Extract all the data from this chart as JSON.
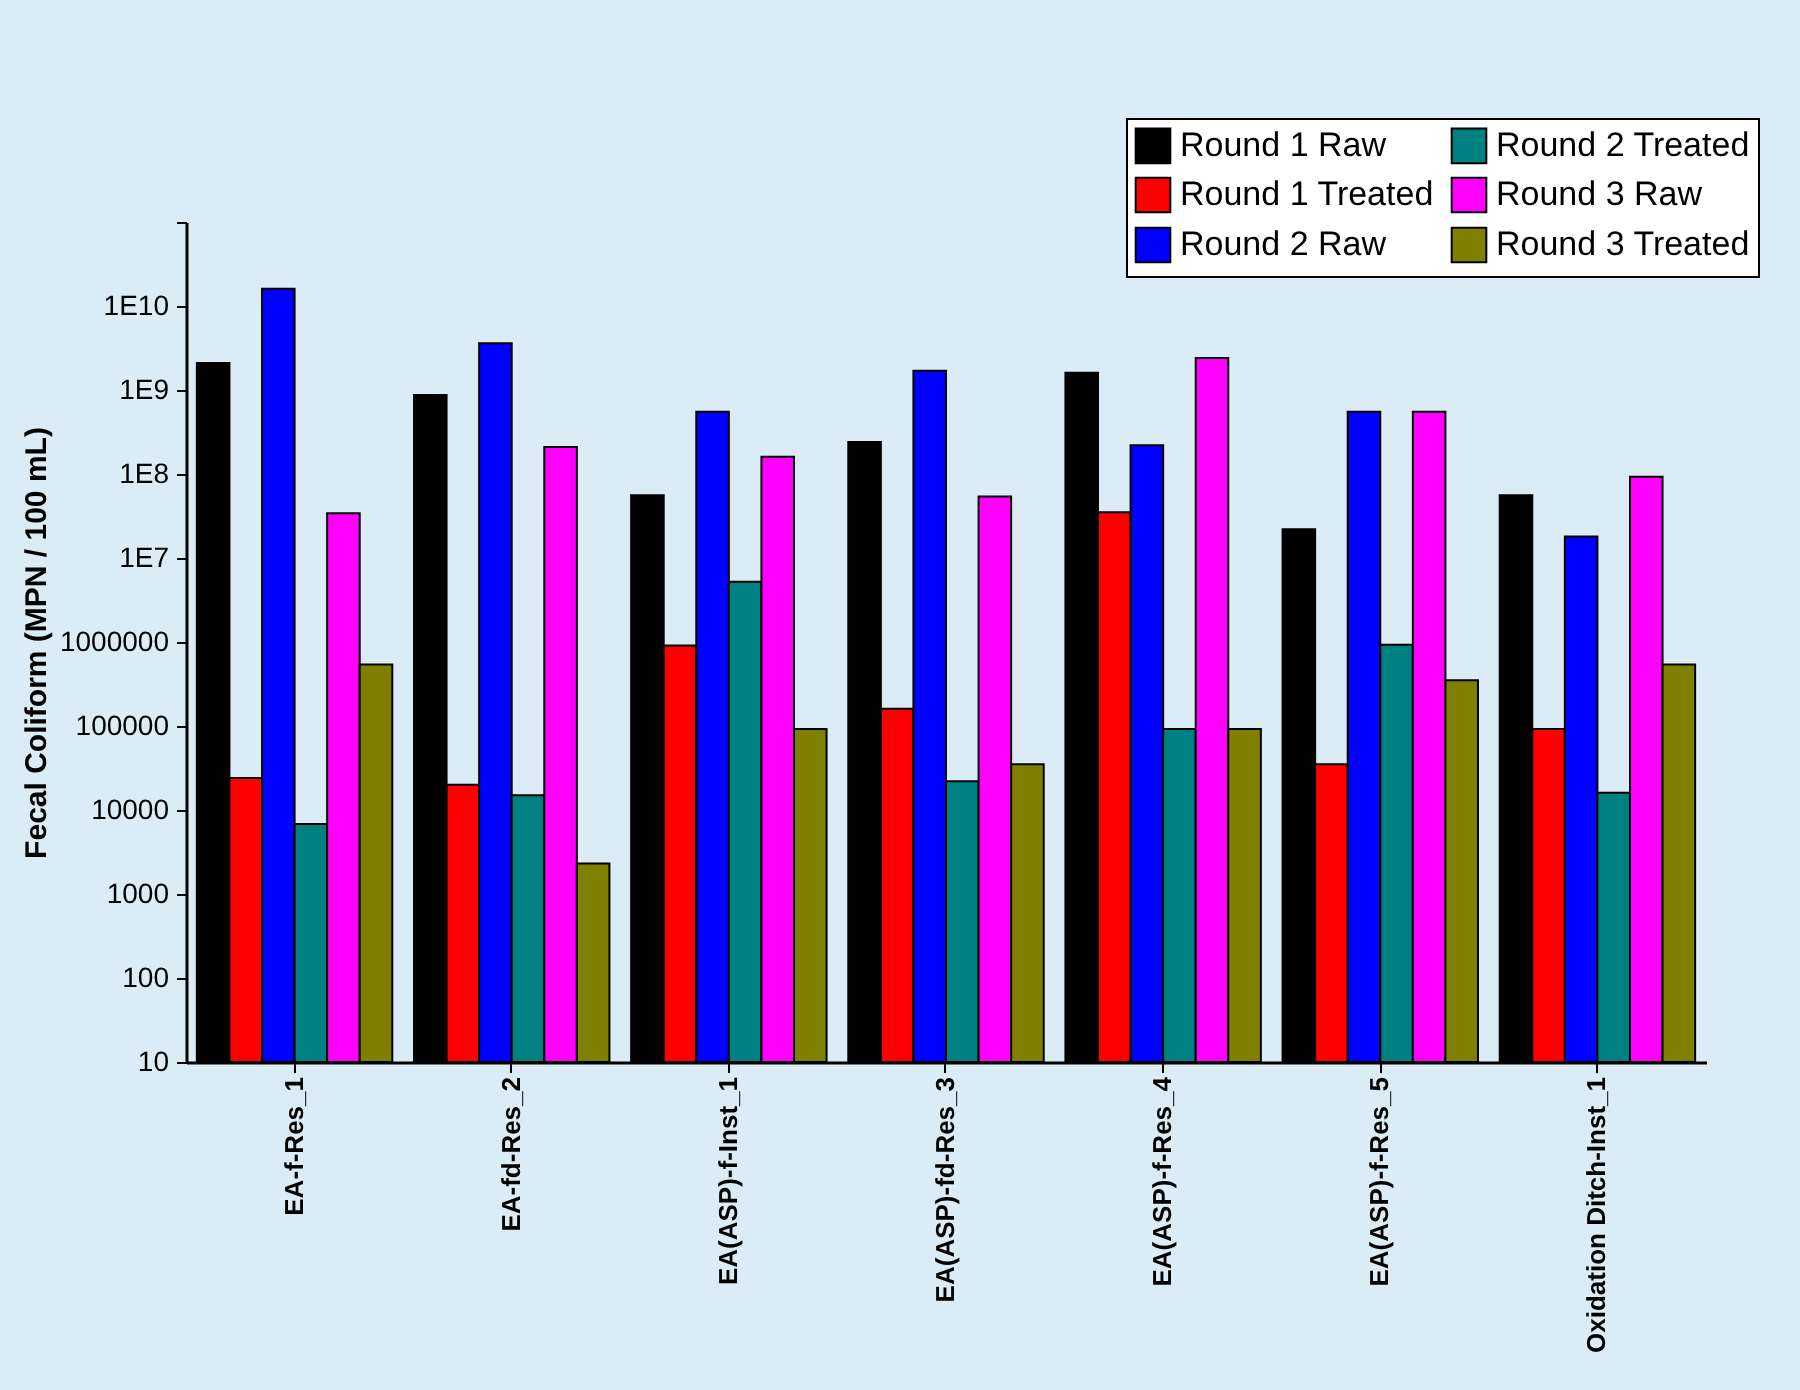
{
  "chart_data": {
    "type": "bar",
    "ylabel": "Fecal Coliform (MPN / 100 mL)",
    "categories": [
      "EA-f-Res_1",
      "EA-fd-Res_2",
      "EA(ASP)-f-Inst_1",
      "EA(ASP)-fd-Res_3",
      "EA(ASP)-f-Res_4",
      "EA(ASP)-f-Res_5",
      "Oxidation Ditch-Inst_1"
    ],
    "series": [
      {
        "name": "Round 1 Raw",
        "color": "#000000",
        "values": [
          2100000000.0,
          870000000.0,
          56000000.0,
          240000000.0,
          1600000000.0,
          22000000.0,
          56000000.0
        ]
      },
      {
        "name": "Round 1 Treated",
        "color": "#ff0000",
        "values": [
          24000,
          20000,
          910000,
          160000,
          35000000.0,
          35000,
          92000
        ]
      },
      {
        "name": "Round 2 Raw",
        "color": "#0000ff",
        "values": [
          16000000000.0,
          3600000000.0,
          550000000.0,
          1700000000.0,
          220000000.0,
          550000000.0,
          18000000.0
        ]
      },
      {
        "name": "Round 2 Treated",
        "color": "#008080",
        "values": [
          6800,
          15000,
          5200000.0,
          22000,
          92000,
          930000,
          16000
        ]
      },
      {
        "name": "Round 3 Raw",
        "color": "#ff00ff",
        "values": [
          34000000.0,
          210000000.0,
          160000000.0,
          54000000.0,
          2400000000.0,
          550000000.0,
          93000000.0
        ]
      },
      {
        "name": "Round 3 Treated",
        "color": "#808000",
        "values": [
          540000,
          2300,
          92000,
          35000,
          92000,
          350000,
          540000
        ]
      }
    ],
    "log": true,
    "ylim": [
      10,
      100000000000.0
    ],
    "yticks": [
      10,
      100,
      1000,
      10000,
      100000,
      1000000,
      {
        "value": 10000000.0,
        "label": "1E7"
      },
      {
        "value": 100000000.0,
        "label": "1E8"
      },
      {
        "value": 1000000000.0,
        "label": "1E9"
      },
      {
        "value": 10000000000.0,
        "label": "1E10"
      },
      {
        "value": 100000000000.0,
        "label": null
      }
    ],
    "grid": false,
    "legend": "top right"
  }
}
